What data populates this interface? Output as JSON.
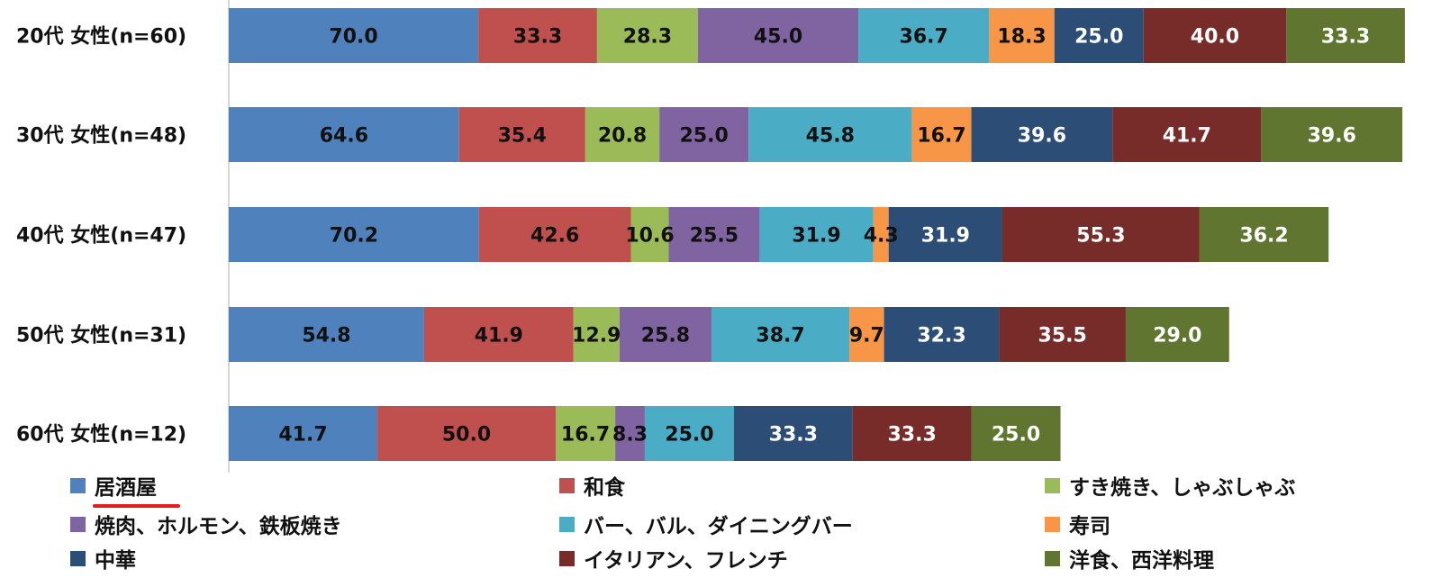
{
  "chart_data": {
    "type": "bar",
    "orientation": "horizontal",
    "stacked": true,
    "categories": [
      "20代 女性(n=60)",
      "30代 女性(n=48)",
      "40代 女性(n=47)",
      "50代 女性(n=31)",
      "60代 女性(n=12)"
    ],
    "series": [
      {
        "name": "居酒屋",
        "color": "#4f81bd",
        "label_color": "#111111",
        "values": [
          70.0,
          64.6,
          70.2,
          54.8,
          41.7
        ],
        "labels": [
          "70.0",
          "64.6",
          "70.2",
          "54.8",
          "41.7"
        ]
      },
      {
        "name": "和食",
        "color": "#c0504d",
        "label_color": "#111111",
        "values": [
          33.3,
          35.4,
          42.6,
          41.9,
          50.0
        ],
        "labels": [
          "33.3",
          "35.4",
          "42.6",
          "41.9",
          "50.0"
        ]
      },
      {
        "name": "すき焼き、しゃぶしゃぶ",
        "color": "#9bbb59",
        "label_color": "#111111",
        "values": [
          28.3,
          20.8,
          10.6,
          12.9,
          16.7
        ],
        "labels": [
          "28.3",
          "20.8",
          "10.6",
          "12.9",
          "16.7"
        ]
      },
      {
        "name": "焼肉、ホルモン、鉄板焼き",
        "color": "#8064a2",
        "label_color": "#111111",
        "values": [
          45.0,
          25.0,
          25.5,
          25.8,
          8.3
        ],
        "labels": [
          "45.0",
          "25.0",
          "25.5",
          "25.8",
          "8.3"
        ]
      },
      {
        "name": "バー、バル、ダイニングバー",
        "color": "#4bacc6",
        "label_color": "#111111",
        "values": [
          36.7,
          45.8,
          31.9,
          38.7,
          25.0
        ],
        "labels": [
          "36.7",
          "45.8",
          "31.9",
          "38.7",
          "25.0"
        ]
      },
      {
        "name": "寿司",
        "color": "#f79646",
        "label_color": "#111111",
        "values": [
          18.3,
          16.7,
          4.3,
          9.7,
          0
        ],
        "labels": [
          "18.3",
          "16.7",
          "4.3",
          "9.7",
          ""
        ]
      },
      {
        "name": "中華",
        "color": "#2c4d75",
        "label_color": "#ffffff",
        "values": [
          25.0,
          39.6,
          31.9,
          32.3,
          33.3
        ],
        "labels": [
          "25.0",
          "39.6",
          "31.9",
          "32.3",
          "33.3"
        ]
      },
      {
        "name": "イタリアン、フレンチ",
        "color": "#772c2a",
        "label_color": "#ffffff",
        "values": [
          40.0,
          41.7,
          55.3,
          35.5,
          33.3
        ],
        "labels": [
          "40.0",
          "41.7",
          "55.3",
          "35.5",
          "33.3"
        ]
      },
      {
        "name": "洋食、西洋料理",
        "color": "#5f7530",
        "label_color": "#ffffff",
        "values": [
          33.3,
          39.6,
          36.2,
          29.0,
          25.0
        ],
        "labels": [
          "33.3",
          "39.6",
          "36.2",
          "29.0",
          "25.0"
        ]
      }
    ],
    "legend_position": "bottom",
    "grid": false,
    "highlighted_legend_entry": "居酒屋",
    "highlight_color": "#e11d1d"
  }
}
